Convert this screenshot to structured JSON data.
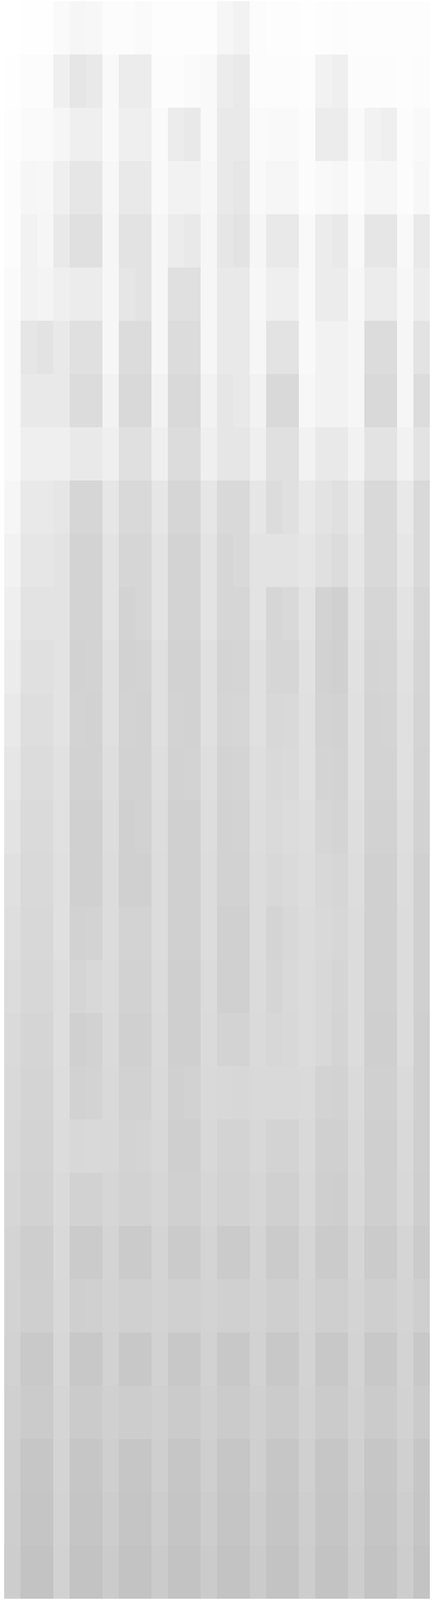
{
  "chart_data": {
    "type": "heatmap",
    "tick_labels": false,
    "color": "#c0c0c0",
    "zlim": [
      0,
      100
    ],
    "cells": [
      [
        0,
        2,
        2,
        8,
        15,
        12,
        5,
        5,
        8,
        3,
        3,
        3,
        3,
        15,
        20,
        5,
        3,
        3,
        2,
        3,
        5,
        3,
        3,
        3,
        3,
        3
      ],
      [
        2,
        5,
        5,
        25,
        40,
        35,
        10,
        30,
        30,
        5,
        5,
        8,
        10,
        30,
        35,
        5,
        5,
        5,
        3,
        20,
        25,
        5,
        5,
        5,
        3,
        5
      ],
      [
        3,
        8,
        8,
        15,
        25,
        25,
        10,
        25,
        25,
        8,
        30,
        35,
        10,
        35,
        35,
        8,
        10,
        10,
        5,
        30,
        30,
        8,
        20,
        25,
        5,
        10
      ],
      [
        5,
        15,
        12,
        25,
        40,
        40,
        12,
        35,
        35,
        10,
        20,
        20,
        12,
        35,
        40,
        10,
        15,
        15,
        5,
        10,
        12,
        5,
        15,
        15,
        5,
        12
      ],
      [
        5,
        20,
        15,
        35,
        50,
        50,
        15,
        45,
        45,
        15,
        30,
        35,
        15,
        40,
        45,
        15,
        35,
        35,
        10,
        30,
        35,
        10,
        40,
        40,
        10,
        35
      ],
      [
        8,
        20,
        18,
        25,
        30,
        30,
        15,
        40,
        45,
        15,
        50,
        50,
        15,
        35,
        35,
        12,
        25,
        25,
        10,
        30,
        30,
        12,
        30,
        30,
        12,
        30
      ],
      [
        10,
        40,
        45,
        35,
        50,
        50,
        15,
        55,
        55,
        15,
        55,
        55,
        15,
        35,
        35,
        15,
        45,
        45,
        10,
        20,
        20,
        15,
        55,
        55,
        15,
        45
      ],
      [
        10,
        35,
        35,
        35,
        55,
        55,
        20,
        60,
        60,
        20,
        60,
        60,
        20,
        40,
        35,
        20,
        60,
        60,
        12,
        20,
        20,
        15,
        60,
        60,
        15,
        55
      ],
      [
        10,
        25,
        25,
        25,
        35,
        35,
        25,
        50,
        50,
        25,
        55,
        55,
        25,
        40,
        40,
        25,
        50,
        50,
        20,
        35,
        35,
        20,
        45,
        45,
        20,
        45
      ],
      [
        15,
        35,
        35,
        40,
        65,
        65,
        40,
        60,
        60,
        40,
        65,
        65,
        40,
        60,
        60,
        40,
        55,
        50,
        35,
        45,
        50,
        35,
        60,
        60,
        35,
        60
      ],
      [
        20,
        40,
        40,
        45,
        70,
        70,
        45,
        65,
        65,
        45,
        70,
        70,
        45,
        65,
        60,
        45,
        45,
        45,
        40,
        50,
        55,
        40,
        60,
        60,
        40,
        60
      ],
      [
        25,
        45,
        45,
        45,
        70,
        70,
        45,
        70,
        65,
        45,
        70,
        70,
        45,
        65,
        65,
        45,
        65,
        60,
        45,
        70,
        75,
        45,
        65,
        65,
        45,
        65
      ],
      [
        30,
        50,
        50,
        45,
        72,
        70,
        50,
        72,
        70,
        50,
        72,
        72,
        50,
        68,
        66,
        50,
        65,
        65,
        48,
        72,
        75,
        48,
        68,
        66,
        48,
        66
      ],
      [
        35,
        52,
        52,
        45,
        70,
        72,
        50,
        70,
        72,
        50,
        70,
        72,
        50,
        66,
        65,
        50,
        62,
        60,
        50,
        70,
        72,
        50,
        70,
        68,
        50,
        68
      ],
      [
        40,
        55,
        55,
        48,
        72,
        72,
        52,
        72,
        72,
        52,
        72,
        70,
        52,
        70,
        68,
        52,
        60,
        58,
        50,
        68,
        70,
        50,
        70,
        70,
        50,
        70
      ],
      [
        45,
        58,
        58,
        48,
        74,
        74,
        54,
        74,
        72,
        54,
        74,
        74,
        54,
        72,
        70,
        54,
        58,
        55,
        52,
        65,
        68,
        52,
        72,
        72,
        52,
        72
      ],
      [
        50,
        60,
        60,
        50,
        74,
        74,
        55,
        74,
        74,
        55,
        74,
        74,
        55,
        72,
        72,
        55,
        62,
        58,
        54,
        62,
        65,
        54,
        74,
        74,
        54,
        74
      ],
      [
        52,
        62,
        62,
        50,
        72,
        70,
        56,
        70,
        70,
        56,
        75,
        75,
        56,
        74,
        74,
        56,
        68,
        62,
        55,
        60,
        64,
        55,
        74,
        74,
        55,
        74
      ],
      [
        55,
        64,
        64,
        52,
        66,
        62,
        57,
        72,
        72,
        57,
        76,
        76,
        57,
        74,
        74,
        57,
        66,
        60,
        56,
        62,
        66,
        56,
        75,
        75,
        56,
        75
      ],
      [
        58,
        66,
        66,
        52,
        74,
        72,
        58,
        74,
        74,
        58,
        76,
        76,
        58,
        70,
        70,
        58,
        64,
        62,
        56,
        62,
        68,
        56,
        76,
        76,
        56,
        76
      ],
      [
        60,
        68,
        68,
        54,
        72,
        70,
        60,
        72,
        72,
        60,
        74,
        72,
        60,
        62,
        64,
        60,
        60,
        60,
        58,
        70,
        72,
        58,
        74,
        74,
        58,
        76
      ],
      [
        62,
        70,
        70,
        55,
        62,
        60,
        62,
        70,
        68,
        62,
        76,
        76,
        62,
        70,
        70,
        62,
        70,
        70,
        60,
        74,
        74,
        60,
        76,
        76,
        60,
        76
      ],
      [
        65,
        72,
        72,
        58,
        72,
        72,
        65,
        72,
        72,
        65,
        74,
        74,
        65,
        72,
        72,
        65,
        74,
        74,
        62,
        76,
        78,
        62,
        76,
        76,
        62,
        78
      ],
      [
        68,
        78,
        78,
        60,
        82,
        82,
        68,
        82,
        82,
        68,
        82,
        82,
        68,
        82,
        82,
        68,
        82,
        82,
        66,
        82,
        82,
        66,
        82,
        82,
        66,
        82
      ],
      [
        70,
        76,
        76,
        62,
        76,
        74,
        70,
        74,
        74,
        70,
        74,
        74,
        70,
        74,
        74,
        70,
        76,
        76,
        68,
        76,
        76,
        68,
        76,
        76,
        68,
        76
      ],
      [
        72,
        86,
        86,
        64,
        88,
        88,
        72,
        88,
        88,
        72,
        88,
        88,
        72,
        88,
        88,
        72,
        88,
        88,
        70,
        88,
        88,
        70,
        88,
        88,
        70,
        88
      ],
      [
        74,
        82,
        82,
        66,
        82,
        82,
        74,
        80,
        80,
        74,
        82,
        82,
        74,
        82,
        82,
        74,
        82,
        82,
        72,
        82,
        82,
        72,
        82,
        82,
        72,
        82
      ],
      [
        76,
        90,
        90,
        68,
        90,
        90,
        76,
        90,
        90,
        76,
        90,
        90,
        76,
        90,
        90,
        76,
        90,
        90,
        74,
        90,
        90,
        74,
        90,
        90,
        74,
        90
      ],
      [
        78,
        92,
        92,
        70,
        92,
        92,
        80,
        92,
        92,
        80,
        92,
        92,
        80,
        92,
        92,
        80,
        92,
        92,
        78,
        92,
        92,
        78,
        92,
        92,
        78,
        92
      ],
      [
        80,
        95,
        95,
        72,
        95,
        95,
        82,
        95,
        95,
        82,
        95,
        95,
        82,
        95,
        95,
        82,
        95,
        95,
        80,
        95,
        95,
        80,
        95,
        95,
        80,
        95
      ]
    ]
  }
}
